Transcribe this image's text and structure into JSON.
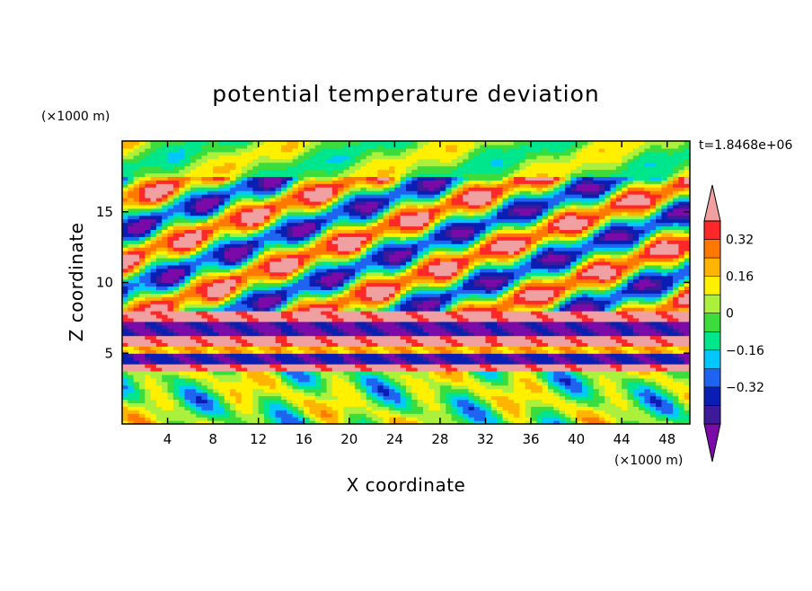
{
  "chart_data": {
    "type": "heatmap",
    "title": "potential temperature deviation",
    "xlabel": "X coordinate",
    "ylabel": "Z coordinate",
    "x_unit": "(×1000 m)",
    "y_unit": "(×1000 m)",
    "time_label": "t=1.8468e+06",
    "xlim": [
      0,
      50
    ],
    "ylim": [
      0,
      20
    ],
    "x_ticks": [
      4,
      8,
      12,
      16,
      20,
      24,
      28,
      32,
      36,
      40,
      44,
      48
    ],
    "y_ticks": [
      5,
      10,
      15
    ],
    "colorbar": {
      "levels": [
        -0.44,
        -0.4,
        -0.32,
        -0.24,
        -0.16,
        -0.08,
        0,
        0.08,
        0.16,
        0.24,
        0.32,
        0.4
      ],
      "tick_labels": [
        "0.32",
        "0.16",
        "0",
        "−0.16",
        "−0.32"
      ],
      "tick_values": [
        0.32,
        0.16,
        0,
        -0.16,
        -0.32
      ],
      "colors": [
        "#7b0aa8",
        "#3c1a9a",
        "#0a1eb4",
        "#1e64f0",
        "#00c8ff",
        "#00e68c",
        "#3cdc3c",
        "#aaf03c",
        "#fff000",
        "#ffb400",
        "#ff7800",
        "#ff2828",
        "#f0a0a0"
      ]
    },
    "bands": [
      {
        "z": 4.1,
        "value": 0.44
      },
      {
        "z": 4.6,
        "value": -0.4
      },
      {
        "z": 5.3,
        "value": 0.2
      },
      {
        "z": 5.9,
        "value": 0.44
      },
      {
        "z": 6.8,
        "value": -0.44
      },
      {
        "z": 7.6,
        "value": 0.44
      }
    ]
  }
}
